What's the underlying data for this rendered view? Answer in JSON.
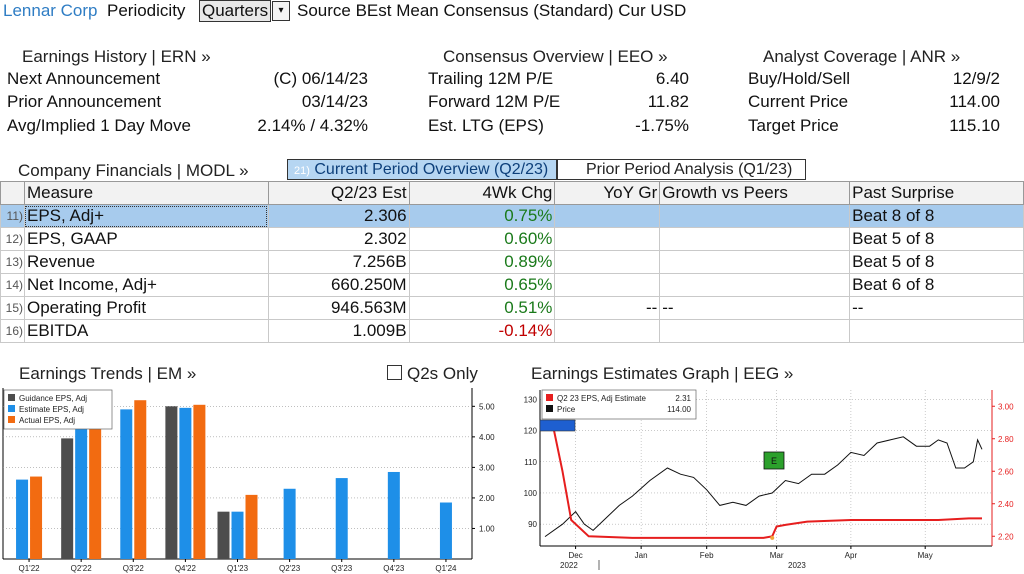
{
  "topbar": {
    "company": "Lennar Corp",
    "periodicity_label": "Periodicity",
    "periodicity_value": "Quarters",
    "source_text": "Source BEst Mean Consensus (Standard) Cur USD"
  },
  "earnings_history": {
    "title": "Earnings History | ERN »",
    "rows": [
      {
        "label": "Next Announcement",
        "value": "(C)  06/14/23"
      },
      {
        "label": "Prior Announcement",
        "value": "03/14/23"
      },
      {
        "label": "Avg/Implied 1 Day Move",
        "value": "2.14% / 4.32%"
      }
    ]
  },
  "consensus": {
    "title": "Consensus Overview | EEO »",
    "rows": [
      {
        "label": "Trailing 12M P/E",
        "value": "6.40"
      },
      {
        "label": "Forward 12M P/E",
        "value": "11.82"
      },
      {
        "label": "Est. LTG (EPS)",
        "value": "-1.75%"
      }
    ]
  },
  "analyst": {
    "title": "Analyst Coverage | ANR »",
    "rows": [
      {
        "label": "Buy/Hold/Sell",
        "value": "12/9/2"
      },
      {
        "label": "Current Price",
        "value": "114.00"
      },
      {
        "label": "Target Price",
        "value": "115.10"
      }
    ]
  },
  "financials": {
    "title": "Company Financials | MODL »",
    "tab_current_num": "21)",
    "tab_current": "Current Period Overview (Q2/23)",
    "tab_prior": "Prior Period Analysis (Q1/23)",
    "headers": [
      "Measure",
      "Q2/23 Est",
      "4Wk Chg",
      "YoY Gr",
      "Growth vs Peers",
      "Past Surprise"
    ],
    "rows": [
      {
        "num": "11)",
        "measure": "EPS, Adj+",
        "est": "2.306",
        "chg": "0.75%",
        "chg_sign": "pos",
        "yoy": "",
        "peers": "",
        "surprise": "Beat 8 of 8"
      },
      {
        "num": "12)",
        "measure": "EPS, GAAP",
        "est": "2.302",
        "chg": "0.60%",
        "chg_sign": "pos",
        "yoy": "",
        "peers": "",
        "surprise": "Beat 5 of 8"
      },
      {
        "num": "13)",
        "measure": "Revenue",
        "est": "7.256B",
        "chg": "0.89%",
        "chg_sign": "pos",
        "yoy": "",
        "peers": "",
        "surprise": "Beat 5 of 8"
      },
      {
        "num": "14)",
        "measure": "Net Income, Adj+",
        "est": "660.250M",
        "chg": "0.65%",
        "chg_sign": "pos",
        "yoy": "",
        "peers": "",
        "surprise": "Beat 6 of 8"
      },
      {
        "num": "15)",
        "measure": "Operating Profit",
        "est": "946.563M",
        "chg": "0.51%",
        "chg_sign": "pos",
        "yoy": "--",
        "peers": "--",
        "surprise": "--"
      },
      {
        "num": "16)",
        "measure": "EBITDA",
        "est": "1.009B",
        "chg": "-0.14%",
        "chg_sign": "neg",
        "yoy": "",
        "peers": "",
        "surprise": ""
      }
    ]
  },
  "trends": {
    "title": "Earnings Trends | EM »",
    "checkbox_label": "Q2s Only",
    "checkbox_checked": false
  },
  "estimates_graph": {
    "title": "Earnings Estimates Graph | EEG »"
  },
  "colors": {
    "guidance": "#4d4d4d",
    "estimate": "#1e8fe8",
    "actual": "#f26b11",
    "price": "#111111",
    "estimate_line": "#e61e1e",
    "accent": "#2f7dc4"
  },
  "chart_data": [
    {
      "type": "bar",
      "categories": [
        "Q1'22",
        "Q2'22",
        "Q3'22",
        "Q4'22",
        "Q1'23",
        "Q2'23",
        "Q3'23",
        "Q4'23",
        "Q1'24"
      ],
      "series": [
        {
          "name": "Guidance EPS, Adj",
          "values": [
            null,
            3.95,
            null,
            5.0,
            1.55,
            null,
            null,
            null,
            null
          ]
        },
        {
          "name": "Estimate EPS, Adj",
          "values": [
            2.6,
            4.3,
            4.9,
            4.95,
            1.55,
            2.3,
            2.65,
            2.85,
            1.85
          ]
        },
        {
          "name": "Actual EPS, Adj",
          "values": [
            2.7,
            4.5,
            5.2,
            5.05,
            2.1,
            null,
            null,
            null,
            null
          ]
        }
      ],
      "yticks": [
        "1.00",
        "2.00",
        "3.00",
        "4.00",
        "5.00"
      ],
      "ylim": [
        0,
        5.6
      ],
      "legend": "top-left"
    },
    {
      "type": "line",
      "series": [
        {
          "name": "Q2 23 EPS, Adj Estimate",
          "last": "2.31",
          "axis": "right",
          "points": [
            [
              0,
              2.86
            ],
            [
              0.02,
              2.86
            ],
            [
              0.04,
              2.6
            ],
            [
              0.06,
              2.3
            ],
            [
              0.1,
              2.2
            ],
            [
              0.2,
              2.19
            ],
            [
              0.3,
              2.19
            ],
            [
              0.4,
              2.19
            ],
            [
              0.5,
              2.19
            ],
            [
              0.52,
              2.2
            ],
            [
              0.53,
              2.26
            ],
            [
              0.55,
              2.27
            ],
            [
              0.6,
              2.29
            ],
            [
              0.7,
              2.3
            ],
            [
              0.8,
              2.3
            ],
            [
              0.9,
              2.3
            ],
            [
              0.97,
              2.31
            ],
            [
              1.0,
              2.31
            ]
          ]
        },
        {
          "name": "Price",
          "last": "114.00",
          "axis": "left",
          "points": [
            [
              0,
              86
            ],
            [
              0.04,
              90
            ],
            [
              0.07,
              94
            ],
            [
              0.09,
              90
            ],
            [
              0.11,
              88
            ],
            [
              0.14,
              92
            ],
            [
              0.17,
              96
            ],
            [
              0.2,
              99
            ],
            [
              0.24,
              104
            ],
            [
              0.28,
              108
            ],
            [
              0.31,
              106
            ],
            [
              0.34,
              105
            ],
            [
              0.37,
              101
            ],
            [
              0.4,
              96
            ],
            [
              0.43,
              97
            ],
            [
              0.46,
              96
            ],
            [
              0.49,
              99
            ],
            [
              0.52,
              100
            ],
            [
              0.55,
              104
            ],
            [
              0.58,
              103
            ],
            [
              0.61,
              106
            ],
            [
              0.64,
              106
            ],
            [
              0.67,
              109
            ],
            [
              0.7,
              113
            ],
            [
              0.73,
              112
            ],
            [
              0.76,
              116
            ],
            [
              0.79,
              117
            ],
            [
              0.82,
              118
            ],
            [
              0.85,
              115
            ],
            [
              0.88,
              115
            ],
            [
              0.9,
              117
            ],
            [
              0.92,
              116
            ],
            [
              0.94,
              108
            ],
            [
              0.96,
              108
            ],
            [
              0.98,
              110
            ],
            [
              0.99,
              117
            ],
            [
              1.0,
              114
            ]
          ]
        }
      ],
      "x_ticks": [
        "Dec",
        "Jan",
        "Feb",
        "Mar",
        "Apr",
        "May"
      ],
      "x_years": [
        "2022",
        "2023"
      ],
      "left_ticks": [
        "90",
        "100",
        "110",
        "120",
        "130"
      ],
      "left_lim": [
        83,
        133
      ],
      "right_ticks": [
        "2.20",
        "2.40",
        "2.60",
        "2.80",
        "3.00"
      ],
      "right_lim": [
        2.14,
        3.1
      ],
      "legend": "top-left"
    }
  ]
}
